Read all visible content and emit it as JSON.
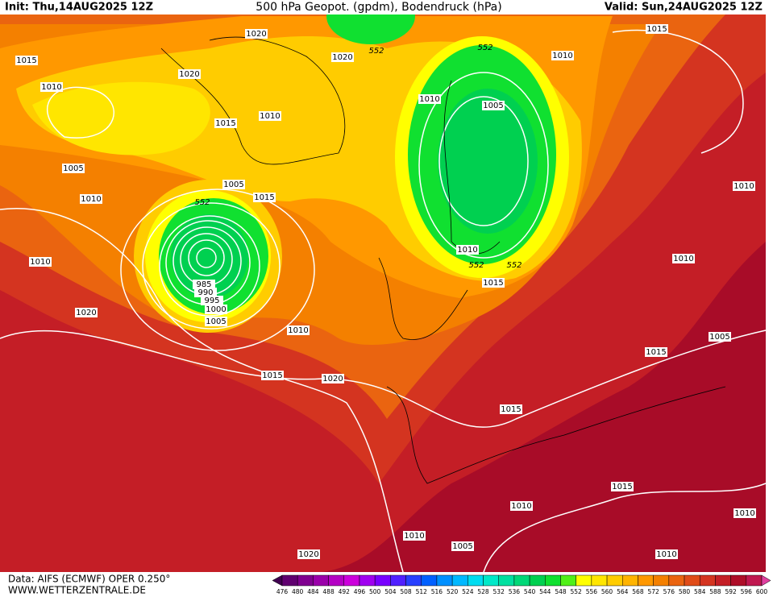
{
  "header": {
    "init": "Init: Thu,14AUG2025 12Z",
    "title": "500 hPa Geopot. (gpdm), Bodendruck (hPa)",
    "valid": "Valid: Sun,24AUG2025 12Z"
  },
  "map_labels": [
    1015,
    1010,
    1020,
    1020,
    1020,
    552,
    552,
    1010,
    1015,
    1015,
    1010,
    1010,
    1005,
    1005,
    1010,
    1005,
    1015,
    552,
    1010,
    1010,
    1010,
    552,
    552,
    1015,
    1010,
    985,
    990,
    995,
    1000,
    1005,
    1020,
    1010,
    1005,
    1015,
    1015,
    1020,
    1015,
    1015,
    1010,
    1010,
    1010,
    1005,
    1020,
    1010
  ],
  "footer": {
    "source": "Data: AIFS (ECMWF) OPER 0.250°",
    "site": "WWW.WETTERZENTRALE.DE"
  },
  "legend": {
    "labels": [
      476,
      480,
      484,
      488,
      492,
      496,
      500,
      504,
      508,
      512,
      516,
      520,
      524,
      528,
      532,
      536,
      540,
      544,
      548,
      552,
      556,
      560,
      564,
      568,
      572,
      576,
      580,
      584,
      588,
      592,
      596,
      600
    ],
    "colors": [
      "#400050",
      "#600070",
      "#800090",
      "#9a00aa",
      "#b400c4",
      "#cc00dc",
      "#a000f0",
      "#7800ff",
      "#5020ff",
      "#2840ff",
      "#0060ff",
      "#0090ff",
      "#00b8ff",
      "#00dcf0",
      "#00e8c8",
      "#00e0a0",
      "#00d878",
      "#00d050",
      "#10e030",
      "#50f018",
      "#ffff00",
      "#ffe600",
      "#ffcc00",
      "#ffb400",
      "#ff9800",
      "#f48000",
      "#ea6410",
      "#e04c18",
      "#d43420",
      "#c41e26",
      "#ae0e28",
      "#c01850",
      "#e040a0"
    ]
  }
}
